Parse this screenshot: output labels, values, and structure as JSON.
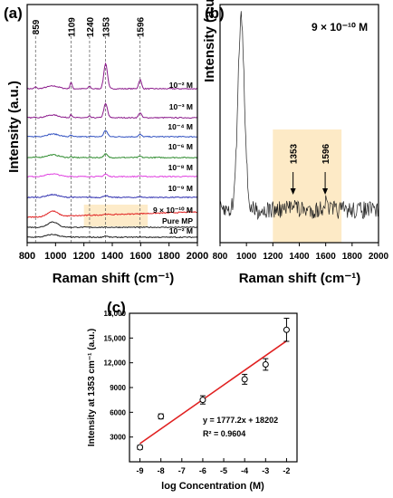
{
  "chart_data": [
    {
      "panel": "(a)",
      "type": "line",
      "xlabel": "Raman shift (cm⁻¹)",
      "ylabel": "Intensity (a.u.)",
      "xlim": [
        800,
        2000
      ],
      "xticks": [
        "800",
        "1000",
        "1200",
        "1400",
        "1600",
        "1800",
        "2000"
      ],
      "peak_lines": [
        "859",
        "1109",
        "1240",
        "1353",
        "1596"
      ],
      "series": [
        {
          "name": "10⁻² M",
          "color": "#8b1a8b"
        },
        {
          "name": "10⁻³ M",
          "color": "#8b1a8b"
        },
        {
          "name": "10⁻⁴ M",
          "color": "#3050c0"
        },
        {
          "name": "10⁻⁶ M",
          "color": "#2e8b2e"
        },
        {
          "name": "10⁻⁸ M",
          "color": "#e040e0"
        },
        {
          "name": "10⁻⁹ M",
          "color": "#3030b0"
        },
        {
          "name": "9 × 10⁻¹⁰ M",
          "color": "#e02020"
        },
        {
          "name": "Pure MP",
          "color": "#202020"
        },
        {
          "name": "10⁻² M",
          "color": "#202020"
        }
      ],
      "highlight_range": [
        1200,
        1650
      ]
    },
    {
      "panel": "(b)",
      "type": "line",
      "title": "9 × 10⁻¹⁰ M",
      "xlabel": "Raman shift (cm⁻¹)",
      "ylabel": "Intensity (a.u.)",
      "xlim": [
        800,
        2000
      ],
      "xticks": [
        "800",
        "1000",
        "1200",
        "1400",
        "1600",
        "1800",
        "2000"
      ],
      "annotations": [
        "1353",
        "1596"
      ],
      "highlight_range": [
        1200,
        1720
      ]
    },
    {
      "panel": "(c)",
      "type": "scatter",
      "xlabel": "log Concentration (M)",
      "ylabel": "Intensity at 1353 cm⁻¹ (a.u.)",
      "xlim": [
        -9.5,
        -1.5
      ],
      "ylim": [
        0,
        18000
      ],
      "xticks": [
        "-9",
        "-8",
        "-7",
        "-6",
        "-5",
        "-4",
        "-3",
        "-2"
      ],
      "yticks": [
        "3000",
        "6000",
        "9000",
        "12,000",
        "15,000",
        "18,000"
      ],
      "points": [
        {
          "x": -9,
          "y": 1750,
          "err": 250
        },
        {
          "x": -8,
          "y": 5500,
          "err": 300
        },
        {
          "x": -6,
          "y": 7500,
          "err": 500
        },
        {
          "x": -4,
          "y": 10000,
          "err": 600
        },
        {
          "x": -3,
          "y": 11800,
          "err": 700
        },
        {
          "x": -2,
          "y": 16000,
          "err": 1400
        }
      ],
      "fit": {
        "slope": 1777.2,
        "intercept": 18202,
        "equation": "y = 1777.2x + 18202",
        "r2": "R² = 0.9604",
        "color": "#e02020"
      }
    }
  ]
}
